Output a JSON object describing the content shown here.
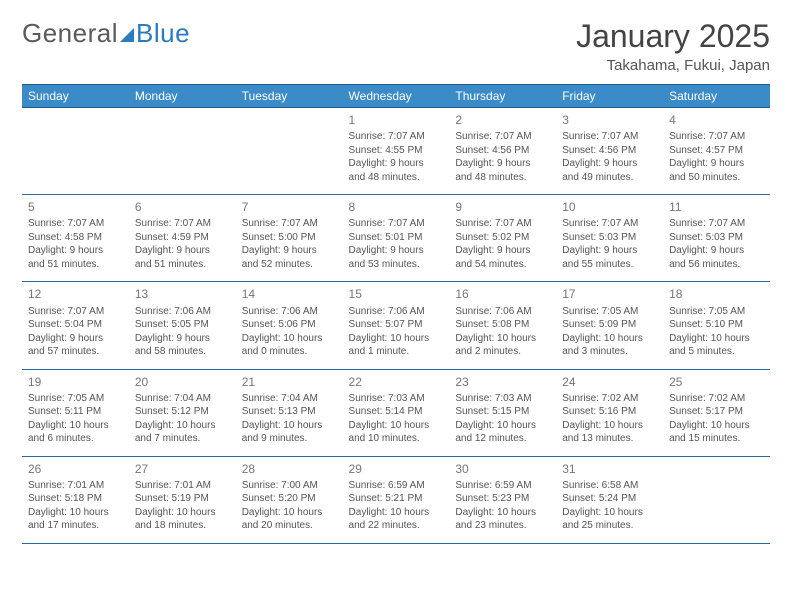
{
  "logo": {
    "part1": "General",
    "part2": "Blue"
  },
  "title": "January 2025",
  "location": "Takahama, Fukui, Japan",
  "header_bg": "#3b8bc9",
  "border_color": "#2a6aa0",
  "text_color": "#555555",
  "dayNames": [
    "Sunday",
    "Monday",
    "Tuesday",
    "Wednesday",
    "Thursday",
    "Friday",
    "Saturday"
  ],
  "weeks": [
    [
      null,
      null,
      null,
      {
        "n": "1",
        "sr": "7:07 AM",
        "ss": "4:55 PM",
        "dl1": "9 hours",
        "dl2": "and 48 minutes."
      },
      {
        "n": "2",
        "sr": "7:07 AM",
        "ss": "4:56 PM",
        "dl1": "9 hours",
        "dl2": "and 48 minutes."
      },
      {
        "n": "3",
        "sr": "7:07 AM",
        "ss": "4:56 PM",
        "dl1": "9 hours",
        "dl2": "and 49 minutes."
      },
      {
        "n": "4",
        "sr": "7:07 AM",
        "ss": "4:57 PM",
        "dl1": "9 hours",
        "dl2": "and 50 minutes."
      }
    ],
    [
      {
        "n": "5",
        "sr": "7:07 AM",
        "ss": "4:58 PM",
        "dl1": "9 hours",
        "dl2": "and 51 minutes."
      },
      {
        "n": "6",
        "sr": "7:07 AM",
        "ss": "4:59 PM",
        "dl1": "9 hours",
        "dl2": "and 51 minutes."
      },
      {
        "n": "7",
        "sr": "7:07 AM",
        "ss": "5:00 PM",
        "dl1": "9 hours",
        "dl2": "and 52 minutes."
      },
      {
        "n": "8",
        "sr": "7:07 AM",
        "ss": "5:01 PM",
        "dl1": "9 hours",
        "dl2": "and 53 minutes."
      },
      {
        "n": "9",
        "sr": "7:07 AM",
        "ss": "5:02 PM",
        "dl1": "9 hours",
        "dl2": "and 54 minutes."
      },
      {
        "n": "10",
        "sr": "7:07 AM",
        "ss": "5:03 PM",
        "dl1": "9 hours",
        "dl2": "and 55 minutes."
      },
      {
        "n": "11",
        "sr": "7:07 AM",
        "ss": "5:03 PM",
        "dl1": "9 hours",
        "dl2": "and 56 minutes."
      }
    ],
    [
      {
        "n": "12",
        "sr": "7:07 AM",
        "ss": "5:04 PM",
        "dl1": "9 hours",
        "dl2": "and 57 minutes."
      },
      {
        "n": "13",
        "sr": "7:06 AM",
        "ss": "5:05 PM",
        "dl1": "9 hours",
        "dl2": "and 58 minutes."
      },
      {
        "n": "14",
        "sr": "7:06 AM",
        "ss": "5:06 PM",
        "dl1": "10 hours",
        "dl2": "and 0 minutes."
      },
      {
        "n": "15",
        "sr": "7:06 AM",
        "ss": "5:07 PM",
        "dl1": "10 hours",
        "dl2": "and 1 minute."
      },
      {
        "n": "16",
        "sr": "7:06 AM",
        "ss": "5:08 PM",
        "dl1": "10 hours",
        "dl2": "and 2 minutes."
      },
      {
        "n": "17",
        "sr": "7:05 AM",
        "ss": "5:09 PM",
        "dl1": "10 hours",
        "dl2": "and 3 minutes."
      },
      {
        "n": "18",
        "sr": "7:05 AM",
        "ss": "5:10 PM",
        "dl1": "10 hours",
        "dl2": "and 5 minutes."
      }
    ],
    [
      {
        "n": "19",
        "sr": "7:05 AM",
        "ss": "5:11 PM",
        "dl1": "10 hours",
        "dl2": "and 6 minutes."
      },
      {
        "n": "20",
        "sr": "7:04 AM",
        "ss": "5:12 PM",
        "dl1": "10 hours",
        "dl2": "and 7 minutes."
      },
      {
        "n": "21",
        "sr": "7:04 AM",
        "ss": "5:13 PM",
        "dl1": "10 hours",
        "dl2": "and 9 minutes."
      },
      {
        "n": "22",
        "sr": "7:03 AM",
        "ss": "5:14 PM",
        "dl1": "10 hours",
        "dl2": "and 10 minutes."
      },
      {
        "n": "23",
        "sr": "7:03 AM",
        "ss": "5:15 PM",
        "dl1": "10 hours",
        "dl2": "and 12 minutes."
      },
      {
        "n": "24",
        "sr": "7:02 AM",
        "ss": "5:16 PM",
        "dl1": "10 hours",
        "dl2": "and 13 minutes."
      },
      {
        "n": "25",
        "sr": "7:02 AM",
        "ss": "5:17 PM",
        "dl1": "10 hours",
        "dl2": "and 15 minutes."
      }
    ],
    [
      {
        "n": "26",
        "sr": "7:01 AM",
        "ss": "5:18 PM",
        "dl1": "10 hours",
        "dl2": "and 17 minutes."
      },
      {
        "n": "27",
        "sr": "7:01 AM",
        "ss": "5:19 PM",
        "dl1": "10 hours",
        "dl2": "and 18 minutes."
      },
      {
        "n": "28",
        "sr": "7:00 AM",
        "ss": "5:20 PM",
        "dl1": "10 hours",
        "dl2": "and 20 minutes."
      },
      {
        "n": "29",
        "sr": "6:59 AM",
        "ss": "5:21 PM",
        "dl1": "10 hours",
        "dl2": "and 22 minutes."
      },
      {
        "n": "30",
        "sr": "6:59 AM",
        "ss": "5:23 PM",
        "dl1": "10 hours",
        "dl2": "and 23 minutes."
      },
      {
        "n": "31",
        "sr": "6:58 AM",
        "ss": "5:24 PM",
        "dl1": "10 hours",
        "dl2": "and 25 minutes."
      },
      null
    ]
  ],
  "labels": {
    "sunrise": "Sunrise: ",
    "sunset": "Sunset: ",
    "daylight": "Daylight: "
  }
}
